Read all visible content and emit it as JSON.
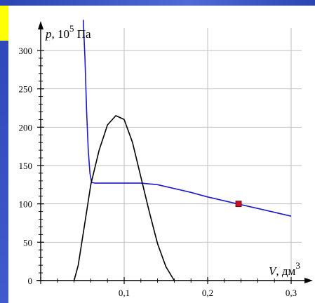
{
  "chart_data": {
    "type": "line",
    "ylabel_base": "p, 10",
    "ylabel_exp": "5",
    "ylabel_unit": " Па",
    "xlabel_base": "V, дм",
    "xlabel_exp": "3",
    "xlim": [
      0,
      0.3
    ],
    "ylim": [
      0,
      300
    ],
    "x_ticks": [
      0,
      0.1,
      0.2,
      0.3
    ],
    "x_tick_labels": [
      "",
      "0,1",
      "0,2",
      "0,3"
    ],
    "y_ticks": [
      0,
      50,
      100,
      150,
      200,
      250,
      300
    ],
    "y_tick_labels": [
      "0",
      "50",
      "100",
      "150",
      "200",
      "250",
      "300"
    ],
    "grid": true,
    "series": [
      {
        "color": "#1a1acc",
        "points": [
          [
            0.051,
            340
          ],
          [
            0.053,
            290
          ],
          [
            0.055,
            220
          ],
          [
            0.057,
            170
          ],
          [
            0.059,
            140
          ],
          [
            0.061,
            128
          ],
          [
            0.065,
            127
          ],
          [
            0.08,
            127
          ],
          [
            0.1,
            127
          ],
          [
            0.12,
            127
          ],
          [
            0.14,
            125
          ],
          [
            0.16,
            120
          ],
          [
            0.18,
            115
          ],
          [
            0.2,
            109
          ],
          [
            0.22,
            104
          ],
          [
            0.24,
            99
          ],
          [
            0.26,
            94
          ],
          [
            0.28,
            89
          ],
          [
            0.3,
            84
          ]
        ]
      },
      {
        "color": "#000000",
        "points": [
          [
            0.04,
            0
          ],
          [
            0.045,
            20
          ],
          [
            0.05,
            55
          ],
          [
            0.055,
            90
          ],
          [
            0.06,
            125
          ],
          [
            0.07,
            170
          ],
          [
            0.08,
            203
          ],
          [
            0.09,
            215
          ],
          [
            0.1,
            210
          ],
          [
            0.11,
            180
          ],
          [
            0.12,
            135
          ],
          [
            0.13,
            90
          ],
          [
            0.14,
            48
          ],
          [
            0.15,
            18
          ],
          [
            0.16,
            0
          ]
        ]
      }
    ],
    "marker": {
      "x": 0.237,
      "y": 100,
      "color": "#c8102e"
    }
  }
}
